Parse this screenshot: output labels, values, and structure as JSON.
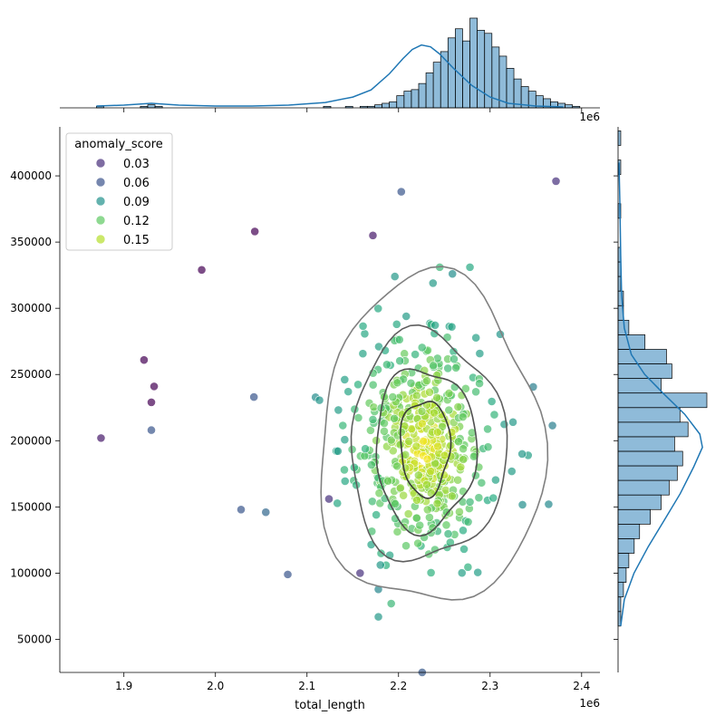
{
  "chart_data": {
    "type": "scatter",
    "subtype": "jointplot",
    "xlabel": "total_length",
    "ylabel": "",
    "x_offset_text": "1e6",
    "xlim": [
      1830000,
      2420000
    ],
    "ylim": [
      25000,
      437000
    ],
    "x_ticks": [
      1900000,
      2000000,
      2100000,
      2200000,
      2300000,
      2400000
    ],
    "x_tick_labels": [
      "1.9",
      "2.0",
      "2.1",
      "2.2",
      "2.3",
      "2.4"
    ],
    "y_ticks": [
      50000,
      100000,
      150000,
      200000,
      250000,
      300000,
      350000,
      400000
    ],
    "y_tick_labels": [
      "50000",
      "100000",
      "150000",
      "200000",
      "250000",
      "300000",
      "350000",
      "400000"
    ],
    "legend": {
      "title": "anomaly_score",
      "placement": "upper left",
      "entries": [
        {
          "label": "0.03",
          "color": "#472d7b"
        },
        {
          "label": "0.06",
          "color": "#3b528b"
        },
        {
          "label": "0.09",
          "color": "#21918c"
        },
        {
          "label": "0.12",
          "color": "#5ec962"
        },
        {
          "label": "0.15",
          "color": "#b5de2b"
        }
      ]
    },
    "colormap": [
      "#440154",
      "#472d7b",
      "#3b528b",
      "#2c728e",
      "#21918c",
      "#28ae80",
      "#5ec962",
      "#addc30",
      "#fde725"
    ],
    "score_range": [
      0.02,
      0.17
    ],
    "point_alpha": 0.7,
    "outliers": [
      {
        "x": 2372000,
        "y": 396000,
        "score": 0.04
      },
      {
        "x": 2203000,
        "y": 388000,
        "score": 0.06
      },
      {
        "x": 2043000,
        "y": 358000,
        "score": 0.02
      },
      {
        "x": 2172000,
        "y": 355000,
        "score": 0.03
      },
      {
        "x": 1985000,
        "y": 329000,
        "score": 0.02
      },
      {
        "x": 1922000,
        "y": 261000,
        "score": 0.02
      },
      {
        "x": 1933000,
        "y": 241000,
        "score": 0.02
      },
      {
        "x": 1930000,
        "y": 229000,
        "score": 0.02
      },
      {
        "x": 1930000,
        "y": 208000,
        "score": 0.06
      },
      {
        "x": 1875000,
        "y": 202000,
        "score": 0.03
      },
      {
        "x": 2042000,
        "y": 233000,
        "score": 0.06
      },
      {
        "x": 2028000,
        "y": 148000,
        "score": 0.06
      },
      {
        "x": 2055000,
        "y": 146000,
        "score": 0.07
      },
      {
        "x": 2079000,
        "y": 99000,
        "score": 0.06
      },
      {
        "x": 2364000,
        "y": 152000,
        "score": 0.09
      },
      {
        "x": 2178000,
        "y": 67000,
        "score": 0.1
      },
      {
        "x": 2158000,
        "y": 100000,
        "score": 0.04
      },
      {
        "x": 2124000,
        "y": 156000,
        "score": 0.04
      },
      {
        "x": 2192000,
        "y": 77000,
        "score": 0.12
      },
      {
        "x": 2196000,
        "y": 324000,
        "score": 0.1
      },
      {
        "x": 2245000,
        "y": 331000,
        "score": 0.12
      },
      {
        "x": 2278000,
        "y": 331000,
        "score": 0.11
      },
      {
        "x": 2335000,
        "y": 190000,
        "score": 0.1
      },
      {
        "x": 2325000,
        "y": 214000,
        "score": 0.1
      }
    ],
    "cluster": {
      "n": 520,
      "center_x": 2228000,
      "center_y": 196000,
      "sd_x": 36000,
      "sd_y": 40000,
      "seed": 7
    },
    "kde_levels": [
      {
        "cx": 2229000,
        "cy": 195000,
        "rx": 27000,
        "ry": 36000
      },
      {
        "cx": 2229000,
        "cy": 194000,
        "rx": 55000,
        "ry": 61000
      },
      {
        "cx": 2231000,
        "cy": 195000,
        "rx": 85000,
        "ry": 86000
      },
      {
        "cx": 2235000,
        "cy": 198000,
        "rx": 122000,
        "ry": 124000
      }
    ],
    "top_hist": {
      "bin_edges_start": 1870000,
      "bin_width": 8000,
      "counts": [
        1,
        0,
        0,
        0,
        0,
        0,
        1,
        2,
        1,
        0,
        0,
        0,
        0,
        0,
        0,
        0,
        0,
        0,
        0,
        0,
        0,
        0,
        0,
        0,
        0,
        0,
        0,
        0,
        0,
        0,
        0,
        1,
        0,
        0,
        1,
        0,
        1,
        1,
        2,
        3,
        4,
        8,
        11,
        12,
        16,
        23,
        30,
        37,
        46,
        52,
        44,
        59,
        51,
        49,
        40,
        34,
        26,
        19,
        14,
        11,
        8,
        6,
        4,
        3,
        2,
        1
      ],
      "kde": [
        [
          1870000,
          0.02
        ],
        [
          1900000,
          0.03
        ],
        [
          1930000,
          0.05
        ],
        [
          1960000,
          0.03
        ],
        [
          2000000,
          0.02
        ],
        [
          2040000,
          0.02
        ],
        [
          2080000,
          0.03
        ],
        [
          2120000,
          0.06
        ],
        [
          2150000,
          0.12
        ],
        [
          2170000,
          0.2
        ],
        [
          2190000,
          0.38
        ],
        [
          2205000,
          0.55
        ],
        [
          2215000,
          0.65
        ],
        [
          2225000,
          0.7
        ],
        [
          2235000,
          0.68
        ],
        [
          2245000,
          0.6
        ],
        [
          2260000,
          0.44
        ],
        [
          2280000,
          0.25
        ],
        [
          2300000,
          0.12
        ],
        [
          2320000,
          0.05
        ],
        [
          2350000,
          0.02
        ],
        [
          2380000,
          0.01
        ]
      ]
    },
    "right_hist": {
      "bin_edges_start": 60000,
      "bin_width": 11000,
      "counts": [
        1,
        1,
        2,
        3,
        4,
        6,
        8,
        12,
        16,
        19,
        22,
        24,
        21,
        26,
        23,
        33,
        16,
        20,
        18,
        10,
        4,
        2,
        2,
        1,
        1,
        1,
        0,
        0,
        1,
        0,
        0,
        1,
        0,
        1,
        0,
        0,
        0
      ],
      "kde": [
        [
          60000,
          0.03
        ],
        [
          80000,
          0.07
        ],
        [
          100000,
          0.18
        ],
        [
          120000,
          0.34
        ],
        [
          140000,
          0.52
        ],
        [
          160000,
          0.7
        ],
        [
          180000,
          0.85
        ],
        [
          195000,
          0.95
        ],
        [
          205000,
          0.92
        ],
        [
          220000,
          0.75
        ],
        [
          235000,
          0.52
        ],
        [
          250000,
          0.3
        ],
        [
          265000,
          0.15
        ],
        [
          285000,
          0.07
        ],
        [
          310000,
          0.04
        ],
        [
          340000,
          0.03
        ],
        [
          380000,
          0.02
        ],
        [
          410000,
          0.01
        ]
      ]
    }
  }
}
